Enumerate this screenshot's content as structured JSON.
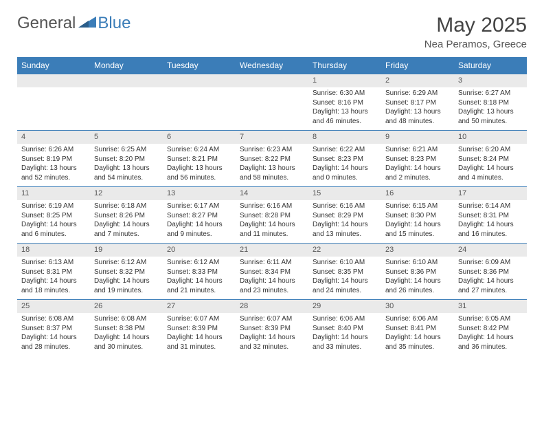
{
  "brand": {
    "part1": "General",
    "part2": "Blue"
  },
  "title": "May 2025",
  "location": "Nea Peramos, Greece",
  "colors": {
    "header_bg": "#3b7db8",
    "row_num_bg": "#eaeaea",
    "border": "#3b7db8"
  },
  "weekdays": [
    "Sunday",
    "Monday",
    "Tuesday",
    "Wednesday",
    "Thursday",
    "Friday",
    "Saturday"
  ],
  "weeks": [
    [
      null,
      null,
      null,
      null,
      {
        "n": "1",
        "sr": "Sunrise: 6:30 AM",
        "ss": "Sunset: 8:16 PM",
        "dl1": "Daylight: 13 hours",
        "dl2": "and 46 minutes."
      },
      {
        "n": "2",
        "sr": "Sunrise: 6:29 AM",
        "ss": "Sunset: 8:17 PM",
        "dl1": "Daylight: 13 hours",
        "dl2": "and 48 minutes."
      },
      {
        "n": "3",
        "sr": "Sunrise: 6:27 AM",
        "ss": "Sunset: 8:18 PM",
        "dl1": "Daylight: 13 hours",
        "dl2": "and 50 minutes."
      }
    ],
    [
      {
        "n": "4",
        "sr": "Sunrise: 6:26 AM",
        "ss": "Sunset: 8:19 PM",
        "dl1": "Daylight: 13 hours",
        "dl2": "and 52 minutes."
      },
      {
        "n": "5",
        "sr": "Sunrise: 6:25 AM",
        "ss": "Sunset: 8:20 PM",
        "dl1": "Daylight: 13 hours",
        "dl2": "and 54 minutes."
      },
      {
        "n": "6",
        "sr": "Sunrise: 6:24 AM",
        "ss": "Sunset: 8:21 PM",
        "dl1": "Daylight: 13 hours",
        "dl2": "and 56 minutes."
      },
      {
        "n": "7",
        "sr": "Sunrise: 6:23 AM",
        "ss": "Sunset: 8:22 PM",
        "dl1": "Daylight: 13 hours",
        "dl2": "and 58 minutes."
      },
      {
        "n": "8",
        "sr": "Sunrise: 6:22 AM",
        "ss": "Sunset: 8:23 PM",
        "dl1": "Daylight: 14 hours",
        "dl2": "and 0 minutes."
      },
      {
        "n": "9",
        "sr": "Sunrise: 6:21 AM",
        "ss": "Sunset: 8:23 PM",
        "dl1": "Daylight: 14 hours",
        "dl2": "and 2 minutes."
      },
      {
        "n": "10",
        "sr": "Sunrise: 6:20 AM",
        "ss": "Sunset: 8:24 PM",
        "dl1": "Daylight: 14 hours",
        "dl2": "and 4 minutes."
      }
    ],
    [
      {
        "n": "11",
        "sr": "Sunrise: 6:19 AM",
        "ss": "Sunset: 8:25 PM",
        "dl1": "Daylight: 14 hours",
        "dl2": "and 6 minutes."
      },
      {
        "n": "12",
        "sr": "Sunrise: 6:18 AM",
        "ss": "Sunset: 8:26 PM",
        "dl1": "Daylight: 14 hours",
        "dl2": "and 7 minutes."
      },
      {
        "n": "13",
        "sr": "Sunrise: 6:17 AM",
        "ss": "Sunset: 8:27 PM",
        "dl1": "Daylight: 14 hours",
        "dl2": "and 9 minutes."
      },
      {
        "n": "14",
        "sr": "Sunrise: 6:16 AM",
        "ss": "Sunset: 8:28 PM",
        "dl1": "Daylight: 14 hours",
        "dl2": "and 11 minutes."
      },
      {
        "n": "15",
        "sr": "Sunrise: 6:16 AM",
        "ss": "Sunset: 8:29 PM",
        "dl1": "Daylight: 14 hours",
        "dl2": "and 13 minutes."
      },
      {
        "n": "16",
        "sr": "Sunrise: 6:15 AM",
        "ss": "Sunset: 8:30 PM",
        "dl1": "Daylight: 14 hours",
        "dl2": "and 15 minutes."
      },
      {
        "n": "17",
        "sr": "Sunrise: 6:14 AM",
        "ss": "Sunset: 8:31 PM",
        "dl1": "Daylight: 14 hours",
        "dl2": "and 16 minutes."
      }
    ],
    [
      {
        "n": "18",
        "sr": "Sunrise: 6:13 AM",
        "ss": "Sunset: 8:31 PM",
        "dl1": "Daylight: 14 hours",
        "dl2": "and 18 minutes."
      },
      {
        "n": "19",
        "sr": "Sunrise: 6:12 AM",
        "ss": "Sunset: 8:32 PM",
        "dl1": "Daylight: 14 hours",
        "dl2": "and 19 minutes."
      },
      {
        "n": "20",
        "sr": "Sunrise: 6:12 AM",
        "ss": "Sunset: 8:33 PM",
        "dl1": "Daylight: 14 hours",
        "dl2": "and 21 minutes."
      },
      {
        "n": "21",
        "sr": "Sunrise: 6:11 AM",
        "ss": "Sunset: 8:34 PM",
        "dl1": "Daylight: 14 hours",
        "dl2": "and 23 minutes."
      },
      {
        "n": "22",
        "sr": "Sunrise: 6:10 AM",
        "ss": "Sunset: 8:35 PM",
        "dl1": "Daylight: 14 hours",
        "dl2": "and 24 minutes."
      },
      {
        "n": "23",
        "sr": "Sunrise: 6:10 AM",
        "ss": "Sunset: 8:36 PM",
        "dl1": "Daylight: 14 hours",
        "dl2": "and 26 minutes."
      },
      {
        "n": "24",
        "sr": "Sunrise: 6:09 AM",
        "ss": "Sunset: 8:36 PM",
        "dl1": "Daylight: 14 hours",
        "dl2": "and 27 minutes."
      }
    ],
    [
      {
        "n": "25",
        "sr": "Sunrise: 6:08 AM",
        "ss": "Sunset: 8:37 PM",
        "dl1": "Daylight: 14 hours",
        "dl2": "and 28 minutes."
      },
      {
        "n": "26",
        "sr": "Sunrise: 6:08 AM",
        "ss": "Sunset: 8:38 PM",
        "dl1": "Daylight: 14 hours",
        "dl2": "and 30 minutes."
      },
      {
        "n": "27",
        "sr": "Sunrise: 6:07 AM",
        "ss": "Sunset: 8:39 PM",
        "dl1": "Daylight: 14 hours",
        "dl2": "and 31 minutes."
      },
      {
        "n": "28",
        "sr": "Sunrise: 6:07 AM",
        "ss": "Sunset: 8:39 PM",
        "dl1": "Daylight: 14 hours",
        "dl2": "and 32 minutes."
      },
      {
        "n": "29",
        "sr": "Sunrise: 6:06 AM",
        "ss": "Sunset: 8:40 PM",
        "dl1": "Daylight: 14 hours",
        "dl2": "and 33 minutes."
      },
      {
        "n": "30",
        "sr": "Sunrise: 6:06 AM",
        "ss": "Sunset: 8:41 PM",
        "dl1": "Daylight: 14 hours",
        "dl2": "and 35 minutes."
      },
      {
        "n": "31",
        "sr": "Sunrise: 6:05 AM",
        "ss": "Sunset: 8:42 PM",
        "dl1": "Daylight: 14 hours",
        "dl2": "and 36 minutes."
      }
    ]
  ]
}
